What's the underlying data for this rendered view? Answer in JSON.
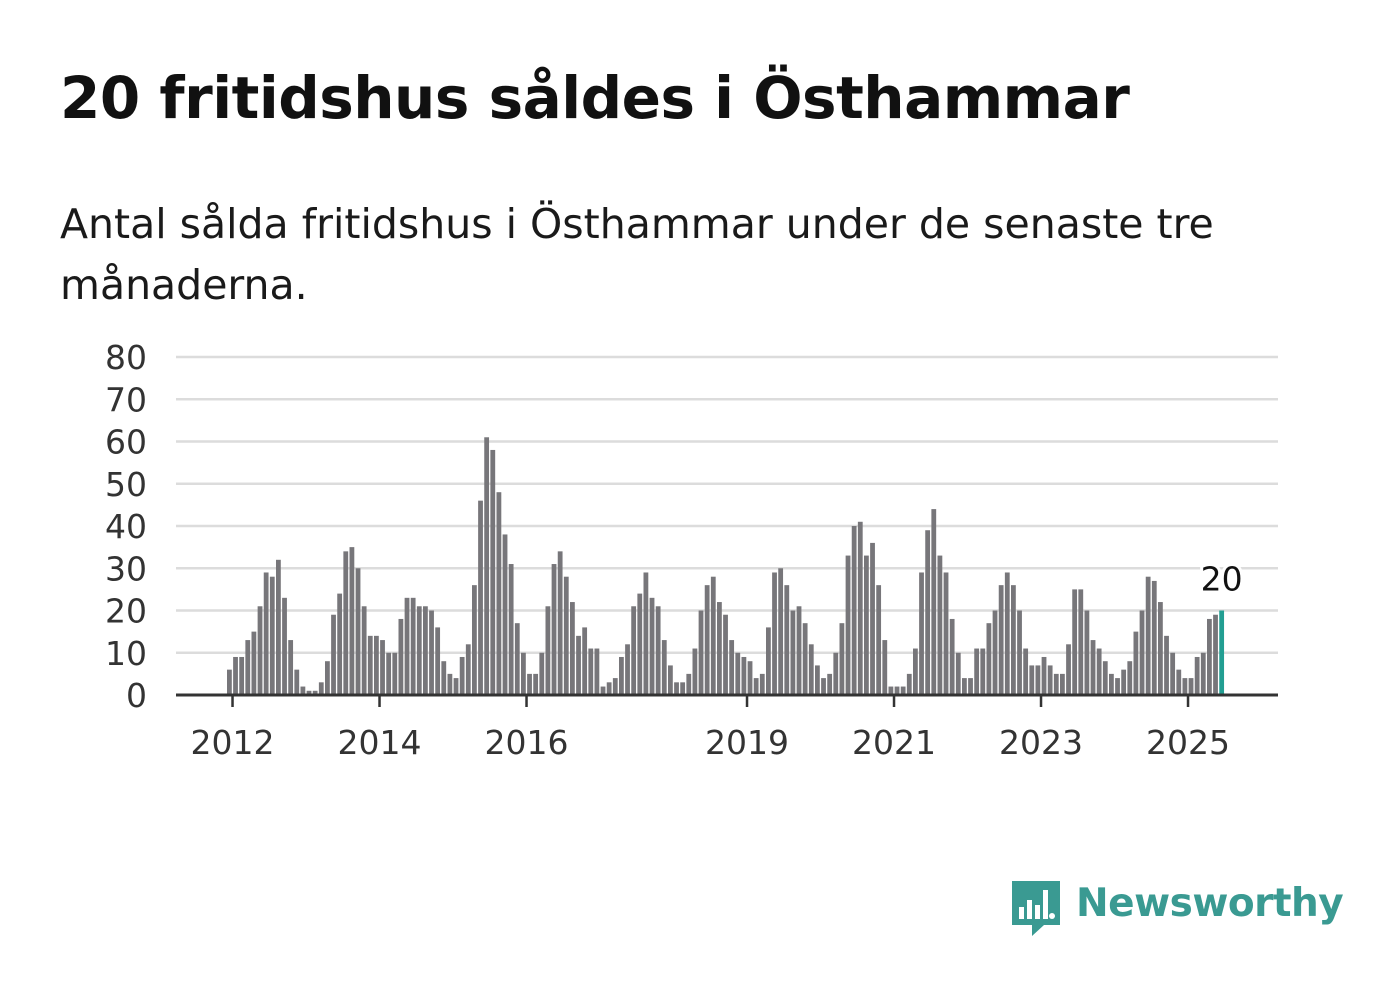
{
  "title": "20 fritidshus såldes i Östhammar",
  "subtitle": "Antal sålda fritidshus i Östhammar under de senaste tre månaderna.",
  "brand": {
    "name": "Newsworthy",
    "color": "#3a9a92"
  },
  "chart_data": {
    "type": "bar",
    "title": "20 fritidshus såldes i Östhammar",
    "subtitle": "Antal sålda fritidshus i Östhammar under de senaste tre månaderna.",
    "xlabel": "",
    "ylabel": "",
    "ylim": [
      0,
      80
    ],
    "y_ticks": [
      0,
      10,
      20,
      30,
      40,
      50,
      60,
      70,
      80
    ],
    "x_tick_labels": [
      "2012",
      "2014",
      "2016",
      "2019",
      "2021",
      "2023",
      "2025"
    ],
    "x_tick_month_index": [
      1,
      25,
      49,
      85,
      109,
      133,
      157
    ],
    "grid": true,
    "bar_color": "#77767a",
    "highlight_color": "#229e92",
    "highlight_label": "20",
    "start_month": "2011-12",
    "end_month": "2025-06",
    "values": [
      6,
      9,
      9,
      13,
      15,
      21,
      29,
      28,
      32,
      23,
      13,
      6,
      2,
      1,
      1,
      3,
      8,
      19,
      24,
      34,
      35,
      30,
      21,
      14,
      14,
      13,
      10,
      10,
      18,
      23,
      23,
      21,
      21,
      20,
      16,
      8,
      5,
      4,
      9,
      12,
      26,
      46,
      61,
      58,
      48,
      38,
      31,
      17,
      10,
      5,
      5,
      10,
      21,
      31,
      34,
      28,
      22,
      14,
      16,
      11,
      11,
      2,
      3,
      4,
      9,
      12,
      21,
      24,
      29,
      23,
      21,
      13,
      7,
      3,
      3,
      5,
      11,
      20,
      26,
      28,
      22,
      19,
      13,
      10,
      9,
      8,
      4,
      5,
      16,
      29,
      30,
      26,
      20,
      21,
      17,
      12,
      7,
      4,
      5,
      10,
      17,
      33,
      40,
      41,
      33,
      36,
      26,
      13,
      2,
      2,
      2,
      5,
      11,
      29,
      39,
      44,
      33,
      29,
      18,
      10,
      4,
      4,
      11,
      11,
      17,
      20,
      26,
      29,
      26,
      20,
      11,
      7,
      7,
      9,
      7,
      5,
      5,
      12,
      25,
      25,
      20,
      13,
      11,
      8,
      5,
      4,
      6,
      8,
      15,
      20,
      28,
      27,
      22,
      14,
      10,
      6,
      4,
      4,
      9,
      10,
      18,
      19,
      20
    ]
  }
}
